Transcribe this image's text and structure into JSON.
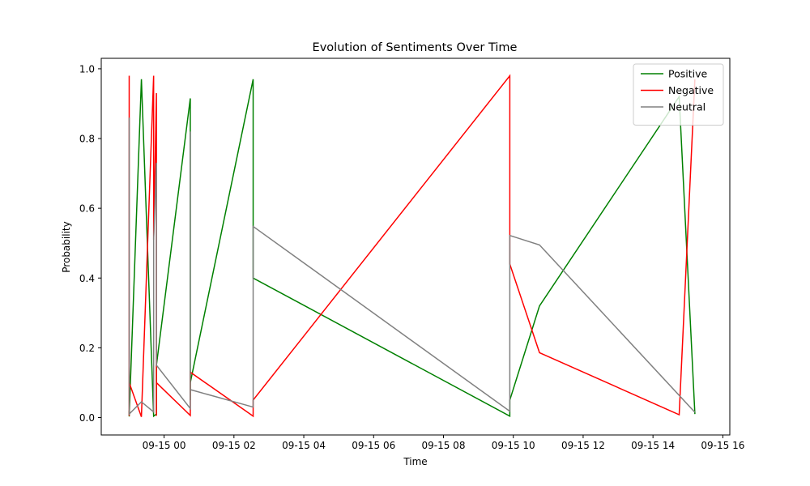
{
  "chart_data": {
    "type": "line",
    "title": "Evolution of Sentiments Over Time",
    "xlabel": "Time",
    "ylabel": "Probability",
    "xlim": [
      -1.8,
      16.2
    ],
    "ylim": [
      -0.05,
      1.03
    ],
    "x_unit": "hours after 2024-09-15 00:00",
    "xticks": [
      {
        "value": 0,
        "label": "09-15 00"
      },
      {
        "value": 2,
        "label": "09-15 02"
      },
      {
        "value": 4,
        "label": "09-15 04"
      },
      {
        "value": 6,
        "label": "09-15 06"
      },
      {
        "value": 8,
        "label": "09-15 08"
      },
      {
        "value": 10,
        "label": "09-15 10"
      },
      {
        "value": 12,
        "label": "09-15 12"
      },
      {
        "value": 14,
        "label": "09-15 14"
      },
      {
        "value": 16,
        "label": "09-15 16"
      }
    ],
    "yticks": [
      {
        "value": 0.0,
        "label": "0.0"
      },
      {
        "value": 0.2,
        "label": "0.2"
      },
      {
        "value": 0.4,
        "label": "0.4"
      },
      {
        "value": 0.6,
        "label": "0.6"
      },
      {
        "value": 0.8,
        "label": "0.8"
      },
      {
        "value": 1.0,
        "label": "1.0"
      }
    ],
    "legend": {
      "position": "top-right"
    },
    "series": [
      {
        "name": "Positive",
        "color": "#008000",
        "x": [
          -1.0,
          -1.0,
          -1.0,
          -0.65,
          -0.3,
          -0.22,
          -0.22,
          0.75,
          0.75,
          0.75,
          2.55,
          2.55,
          2.55,
          9.9,
          9.9,
          9.9,
          10.75,
          14.75,
          15.2
        ],
        "y": [
          0.01,
          0.02,
          0.003,
          0.97,
          0.004,
          0.01,
          0.15,
          0.915,
          0.05,
          0.1,
          0.97,
          0.55,
          0.4,
          0.004,
          0.02,
          0.05,
          0.32,
          0.92,
          0.01
        ]
      },
      {
        "name": "Negative",
        "color": "#ff0000",
        "x": [
          -1.0,
          -1.0,
          -1.0,
          -0.65,
          -0.3,
          -0.3,
          -0.22,
          -0.22,
          -0.22,
          0.75,
          0.75,
          2.55,
          2.55,
          9.9,
          9.9,
          9.9,
          10.75,
          14.75,
          15.2
        ],
        "y": [
          0.98,
          0.005,
          0.1,
          0.002,
          0.98,
          0.51,
          0.93,
          0.005,
          0.1,
          0.006,
          0.13,
          0.004,
          0.05,
          0.98,
          0.47,
          0.44,
          0.186,
          0.008,
          0.97
        ]
      },
      {
        "name": "Neutral",
        "color": "#808080",
        "x": [
          -1.0,
          -1.0,
          -0.65,
          -0.3,
          -0.3,
          -0.22,
          -0.22,
          0.75,
          0.75,
          0.75,
          2.55,
          2.55,
          9.9,
          9.9,
          10.75,
          15.2
        ],
        "y": [
          0.86,
          0.01,
          0.045,
          0.016,
          0.51,
          0.73,
          0.15,
          0.026,
          0.82,
          0.08,
          0.03,
          0.548,
          0.018,
          0.522,
          0.495,
          0.015
        ]
      }
    ]
  }
}
